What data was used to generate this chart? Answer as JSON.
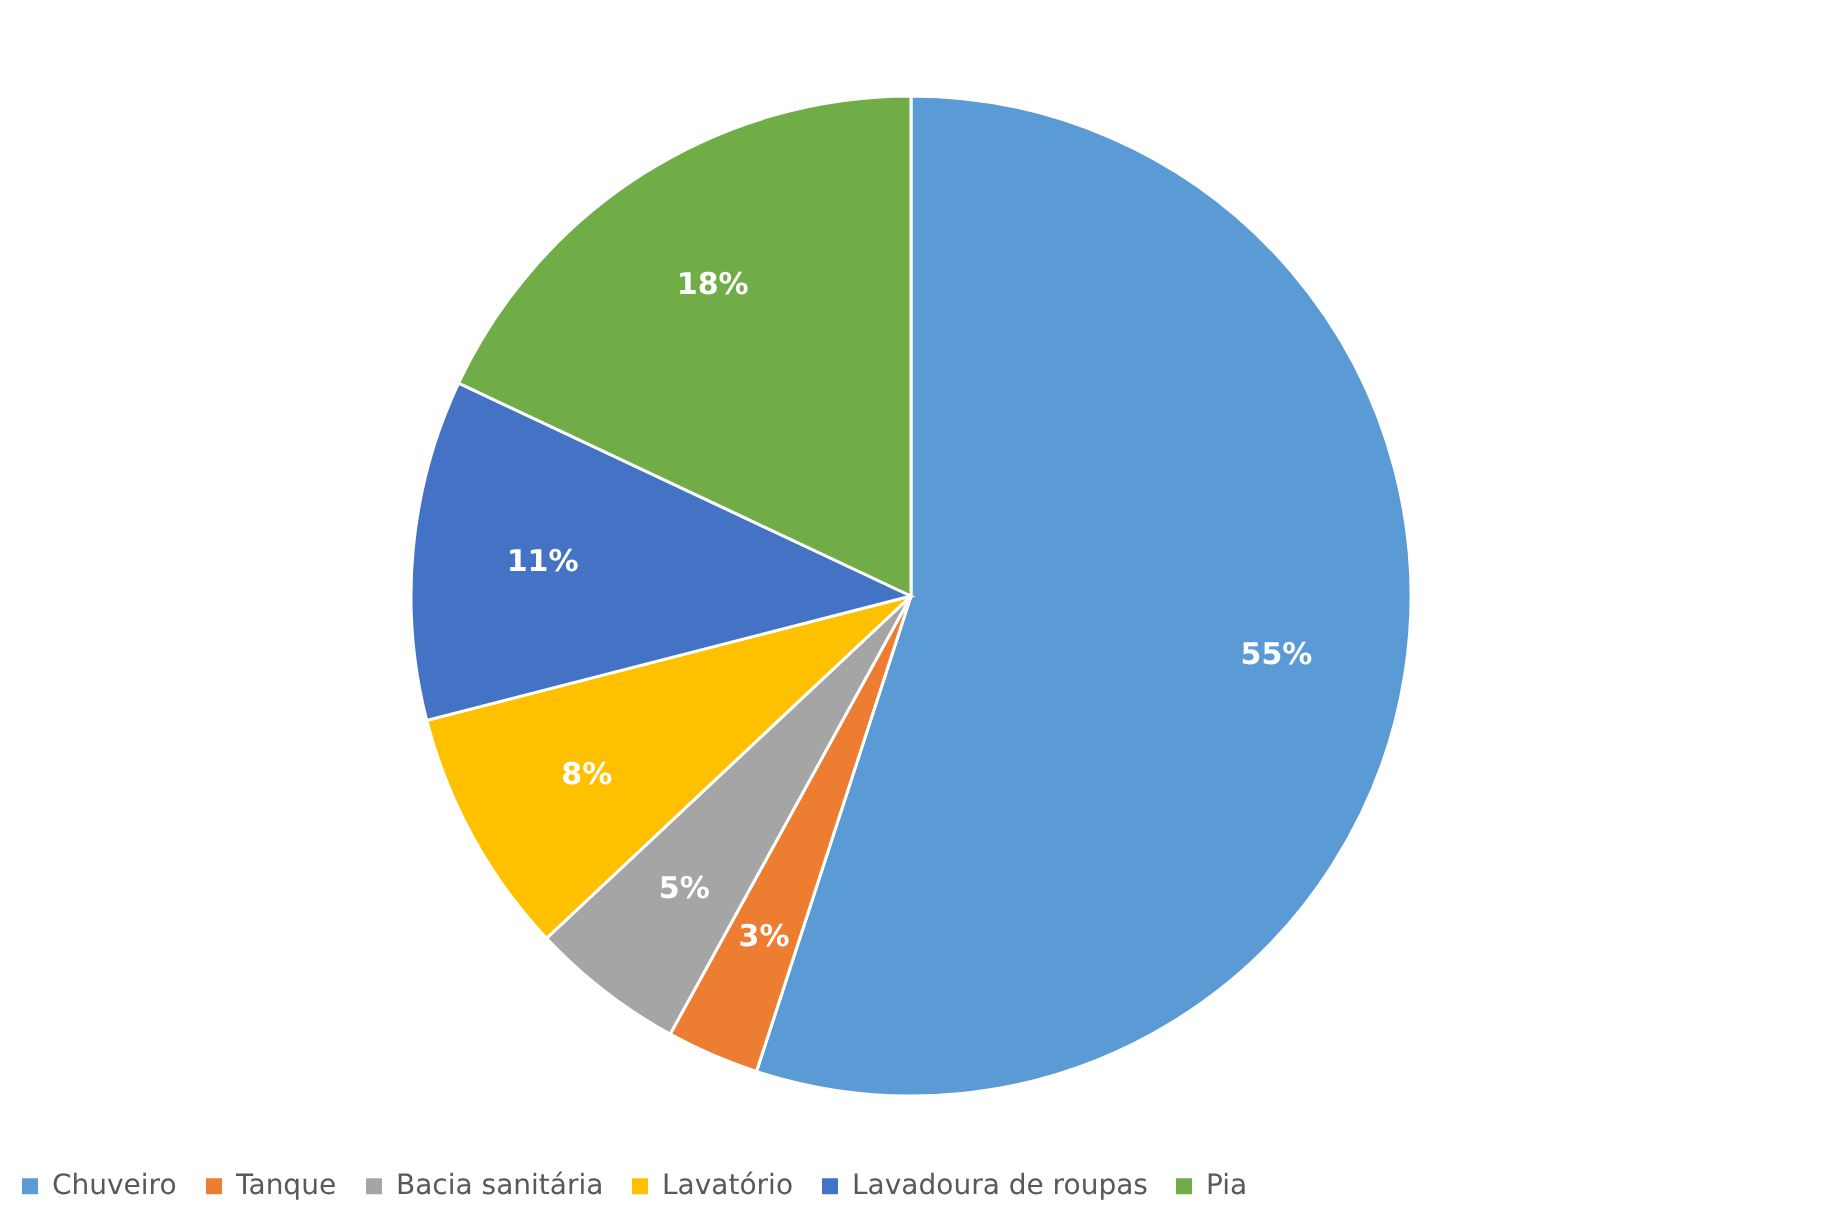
{
  "chart_data": {
    "type": "pie",
    "categories": [
      "Chuveiro",
      "Tanque",
      "Bacia sanitária",
      "Lavatório",
      "Lavadoura de roupas",
      "Pia"
    ],
    "values": [
      55,
      3,
      5,
      8,
      11,
      18
    ],
    "colors": [
      "#5b9bd5",
      "#ed7d31",
      "#a5a5a5",
      "#ffc000",
      "#4472c4",
      "#70ad47"
    ],
    "value_labels": [
      "55%",
      "3%",
      "5%",
      "8%",
      "11%",
      "18%"
    ],
    "legend": "bottom"
  }
}
